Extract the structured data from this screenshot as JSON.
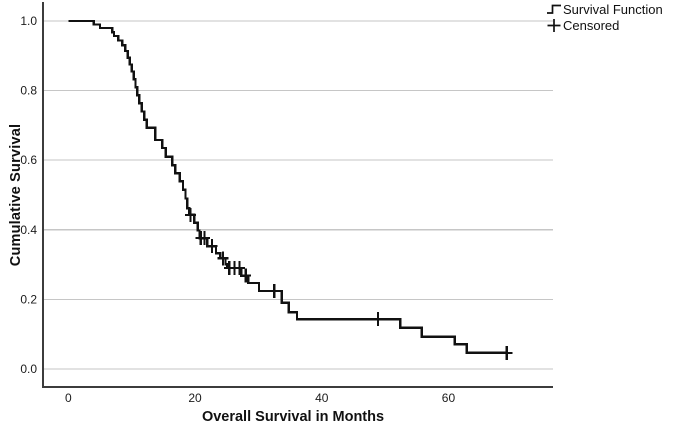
{
  "chart_data": {
    "type": "line",
    "subtype": "kaplan-meier-step",
    "title": "",
    "xlabel": "Overall Survival in Months",
    "ylabel": "Cumulative Survival",
    "xlim": [
      -4,
      76.5
    ],
    "ylim": [
      -0.052,
      1.049
    ],
    "x_ticks": [
      0,
      20,
      40,
      60
    ],
    "x_tick_labels": [
      "0",
      "20",
      "40",
      "60"
    ],
    "y_ticks": [
      0.0,
      0.2,
      0.4,
      0.6,
      0.8,
      1.0
    ],
    "y_tick_labels": [
      "0.0",
      "0.2",
      "0.4",
      "0.6",
      "0.8",
      "1.0"
    ],
    "grid": "horizontal-only",
    "legend_position": "top-right",
    "colors": {
      "curve": "#111111",
      "grid": "#c6c6c6",
      "axis": "#3c3c3c",
      "text": "#1c1c1c"
    },
    "series": [
      {
        "name": "Survival Function",
        "style": "step-post",
        "end_time": 69.4,
        "points": [
          [
            0,
            1.0
          ],
          [
            4.0,
            0.99
          ],
          [
            5.0,
            0.98
          ],
          [
            6.9,
            0.968
          ],
          [
            7.2,
            0.957
          ],
          [
            7.9,
            0.944
          ],
          [
            8.5,
            0.93
          ],
          [
            9.0,
            0.914
          ],
          [
            9.4,
            0.895
          ],
          [
            9.7,
            0.875
          ],
          [
            10.0,
            0.855
          ],
          [
            10.3,
            0.833
          ],
          [
            10.6,
            0.81
          ],
          [
            10.9,
            0.787
          ],
          [
            11.2,
            0.764
          ],
          [
            11.6,
            0.74
          ],
          [
            12.0,
            0.716
          ],
          [
            12.4,
            0.693
          ],
          [
            13.7,
            0.658
          ],
          [
            14.8,
            0.635
          ],
          [
            15.4,
            0.61
          ],
          [
            16.4,
            0.586
          ],
          [
            16.9,
            0.563
          ],
          [
            17.6,
            0.54
          ],
          [
            18.1,
            0.515
          ],
          [
            18.5,
            0.49
          ],
          [
            18.8,
            0.462
          ],
          [
            19.1,
            0.443
          ],
          [
            19.9,
            0.42
          ],
          [
            20.4,
            0.398
          ],
          [
            20.7,
            0.376
          ],
          [
            21.9,
            0.353
          ],
          [
            23.3,
            0.333
          ],
          [
            24.0,
            0.318
          ],
          [
            24.8,
            0.301
          ],
          [
            25.1,
            0.29
          ],
          [
            27.3,
            0.268
          ],
          [
            28.4,
            0.247
          ],
          [
            30.1,
            0.224
          ],
          [
            33.7,
            0.19
          ],
          [
            34.8,
            0.163
          ],
          [
            36.1,
            0.143
          ],
          [
            52.4,
            0.118
          ],
          [
            55.8,
            0.092
          ],
          [
            61.0,
            0.071
          ],
          [
            62.9,
            0.046
          ]
        ]
      }
    ],
    "censored": {
      "name": "Censored",
      "marker": "plus",
      "points": [
        [
          19.3,
          0.443
        ],
        [
          20.9,
          0.376
        ],
        [
          21.5,
          0.376
        ],
        [
          22.7,
          0.353
        ],
        [
          24.4,
          0.318
        ],
        [
          25.4,
          0.29
        ],
        [
          26.2,
          0.29
        ],
        [
          27.0,
          0.29
        ],
        [
          28.0,
          0.268
        ],
        [
          32.5,
          0.224
        ],
        [
          48.9,
          0.143
        ],
        [
          69.2,
          0.046
        ]
      ]
    }
  },
  "legend": {
    "items": [
      {
        "label": "Survival Function",
        "marker": "step-line"
      },
      {
        "label": "Censored",
        "marker": "plus"
      }
    ]
  }
}
